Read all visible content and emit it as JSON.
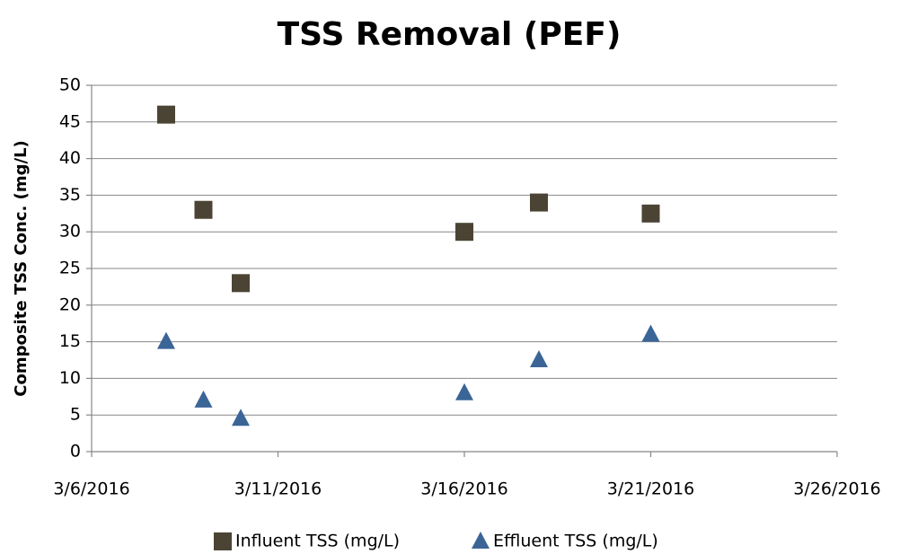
{
  "chart_data": {
    "type": "scatter",
    "title": "TSS Removal (PEF)",
    "y_label": "Composite TSS Conc. (mg/L)",
    "x": [
      "3/8/2016",
      "3/9/2016",
      "3/10/2016",
      "3/16/2016",
      "3/18/2016",
      "3/21/2016"
    ],
    "series": [
      {
        "name": "Influent TSS (mg/L)",
        "color": "#4b4434",
        "marker": "square",
        "values": [
          46,
          33,
          23,
          30,
          34,
          32.5
        ]
      },
      {
        "name": "Effluent TSS (mg/L)",
        "color": "#3b6597",
        "marker": "triangle",
        "values": [
          15,
          7,
          4.5,
          8,
          12.5,
          16
        ]
      }
    ],
    "xlim": [
      "3/6/2016",
      "3/26/2016"
    ],
    "xticks": [
      "3/6/2016",
      "3/11/2016",
      "3/16/2016",
      "3/21/2016",
      "3/26/2016"
    ],
    "ylim": [
      0,
      50
    ],
    "yticks": [
      0,
      5,
      10,
      15,
      20,
      25,
      30,
      35,
      40,
      45,
      50
    ],
    "grid": true,
    "legend": "bottom"
  }
}
